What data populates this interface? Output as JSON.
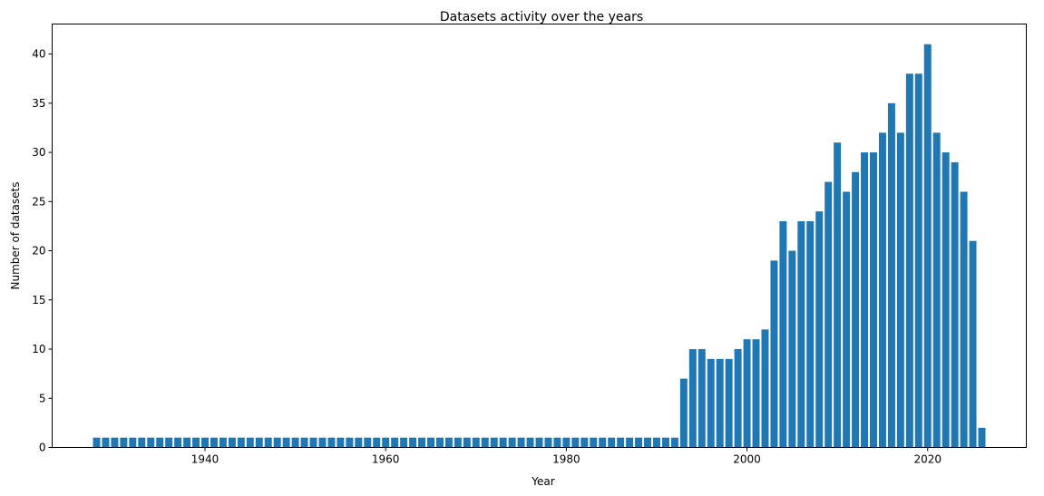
{
  "chart_data": {
    "type": "bar",
    "title": "Datasets activity over the years",
    "xlabel": "Year",
    "ylabel": "Number of datasets",
    "x": [
      1928,
      1929,
      1930,
      1931,
      1932,
      1933,
      1934,
      1935,
      1936,
      1937,
      1938,
      1939,
      1940,
      1941,
      1942,
      1943,
      1944,
      1945,
      1946,
      1947,
      1948,
      1949,
      1950,
      1951,
      1952,
      1953,
      1954,
      1955,
      1956,
      1957,
      1958,
      1959,
      1960,
      1961,
      1962,
      1963,
      1964,
      1965,
      1966,
      1967,
      1968,
      1969,
      1970,
      1971,
      1972,
      1973,
      1974,
      1975,
      1976,
      1977,
      1978,
      1979,
      1980,
      1981,
      1982,
      1983,
      1984,
      1985,
      1986,
      1987,
      1988,
      1989,
      1990,
      1991,
      1992,
      1993,
      1994,
      1995,
      1996,
      1997,
      1998,
      1999,
      2000,
      2001,
      2002,
      2003,
      2004,
      2005,
      2006,
      2007,
      2008,
      2009,
      2010,
      2011,
      2012,
      2013,
      2014,
      2015,
      2016,
      2017,
      2018,
      2019,
      2020,
      2021,
      2022,
      2023,
      2024,
      2025,
      2026
    ],
    "values": [
      1,
      1,
      1,
      1,
      1,
      1,
      1,
      1,
      1,
      1,
      1,
      1,
      1,
      1,
      1,
      1,
      1,
      1,
      1,
      1,
      1,
      1,
      1,
      1,
      1,
      1,
      1,
      1,
      1,
      1,
      1,
      1,
      1,
      1,
      1,
      1,
      1,
      1,
      1,
      1,
      1,
      1,
      1,
      1,
      1,
      1,
      1,
      1,
      1,
      1,
      1,
      1,
      1,
      1,
      1,
      1,
      1,
      1,
      1,
      1,
      1,
      1,
      1,
      1,
      1,
      7,
      10,
      10,
      9,
      9,
      9,
      10,
      11,
      11,
      12,
      19,
      23,
      20,
      23,
      23,
      24,
      27,
      31,
      26,
      28,
      30,
      30,
      32,
      35,
      32,
      38,
      38,
      41,
      32,
      30,
      29,
      26,
      21,
      2
    ],
    "xlim": [
      1923.6,
      1930.4
    ],
    "xticks": [
      1940,
      1960,
      1980,
      2000,
      2020
    ],
    "ylim": [
      0,
      43.05
    ],
    "yticks": [
      0,
      5,
      10,
      15,
      20,
      25,
      30,
      35,
      40
    ],
    "bar_color": "#1f77b4",
    "grid": false
  }
}
